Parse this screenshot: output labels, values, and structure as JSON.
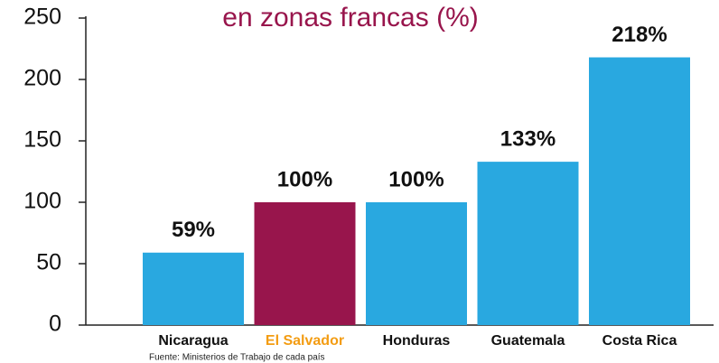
{
  "chart_data": {
    "type": "bar",
    "title": "en zonas francas (%)",
    "title_color": "#98154c",
    "categories": [
      "Nicaragua",
      "El Salvador",
      "Honduras",
      "Guatemala",
      "Costa Rica"
    ],
    "category_colors": [
      "#111111",
      "#f39c12",
      "#111111",
      "#111111",
      "#111111"
    ],
    "values": [
      59,
      100,
      100,
      133,
      218
    ],
    "value_labels": [
      "59%",
      "100%",
      "100%",
      "133%",
      "218%"
    ],
    "colors": [
      "#29a8e0",
      "#98154c",
      "#29a8e0",
      "#29a8e0",
      "#29a8e0"
    ],
    "ylim": [
      0,
      250
    ],
    "yticks": [
      0,
      50,
      100,
      150,
      200,
      250
    ],
    "grid": false,
    "source": "Fuente: Ministerios de Trabajo de cada país"
  }
}
